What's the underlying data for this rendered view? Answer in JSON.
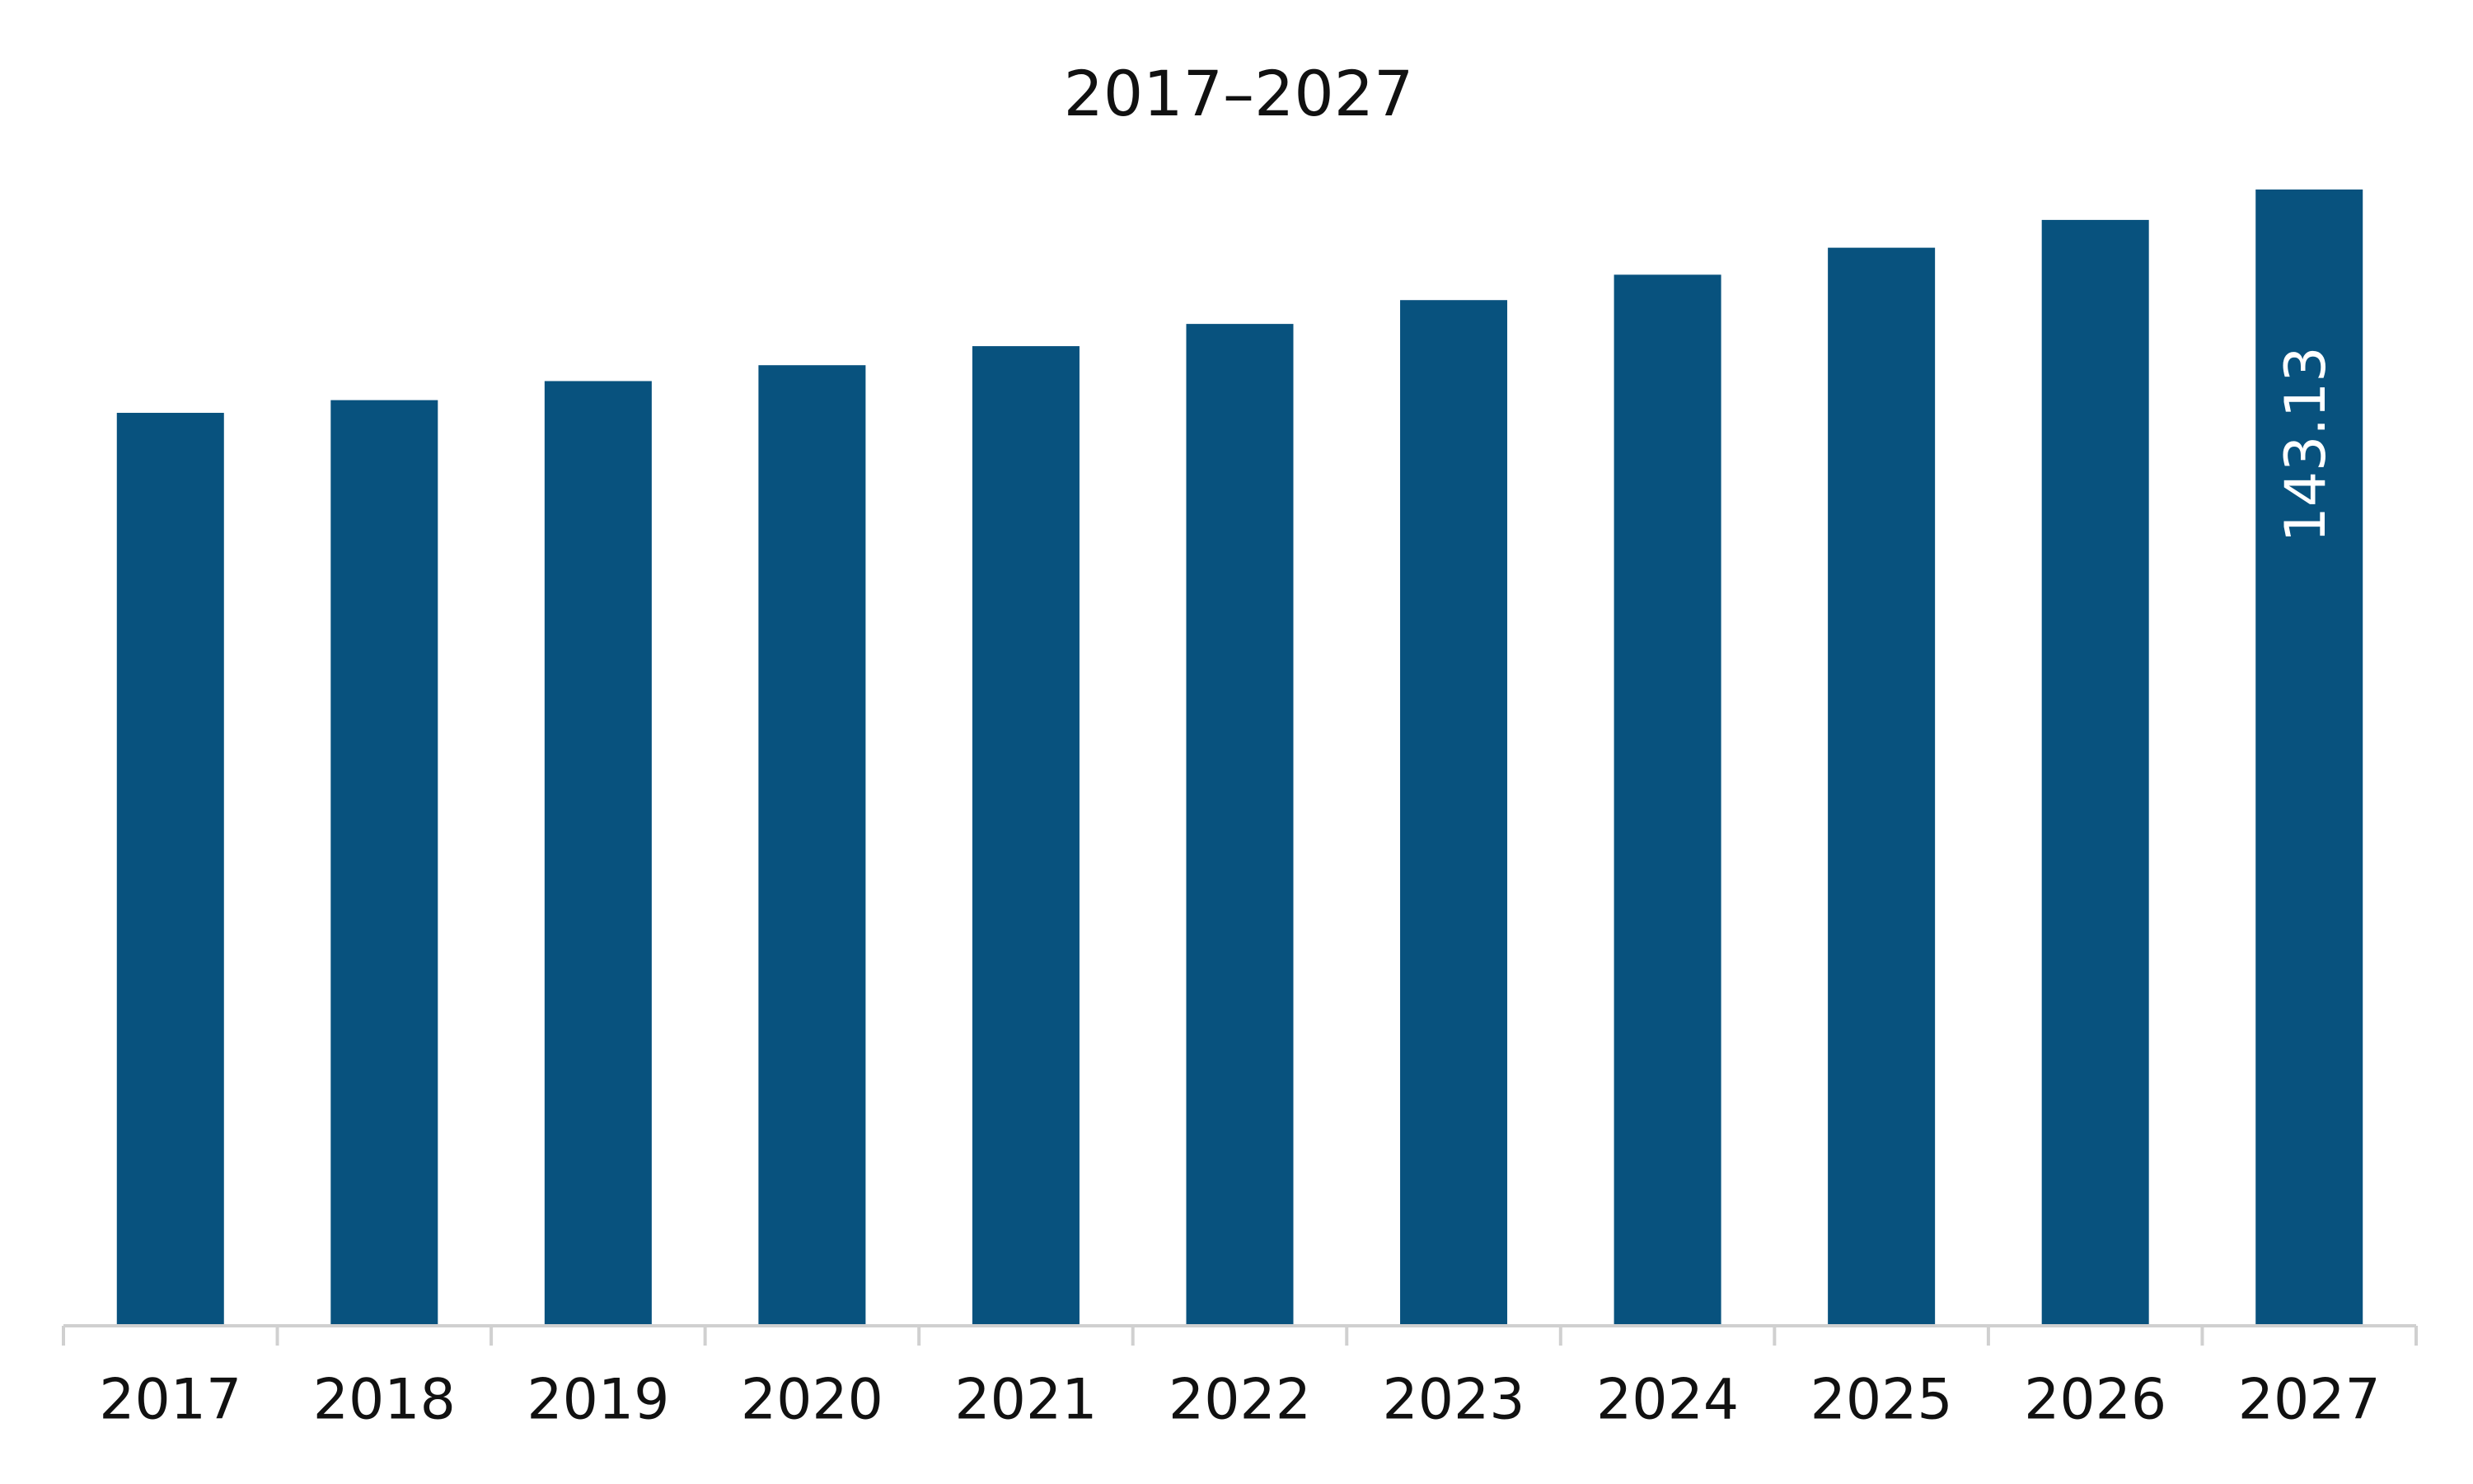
{
  "chart_data": {
    "type": "bar",
    "title": "2017–2027",
    "categories": [
      "2017",
      "2018",
      "2019",
      "2020",
      "2021",
      "2022",
      "2023",
      "2024",
      "2025",
      "2026",
      "2027"
    ],
    "values": [
      115.0,
      116.6,
      119.0,
      121.0,
      123.4,
      126.2,
      129.2,
      132.4,
      135.8,
      139.3,
      143.13
    ],
    "value_labels": [
      null,
      null,
      null,
      null,
      null,
      null,
      null,
      null,
      null,
      null,
      "143.13"
    ],
    "color": "#08527e"
  }
}
